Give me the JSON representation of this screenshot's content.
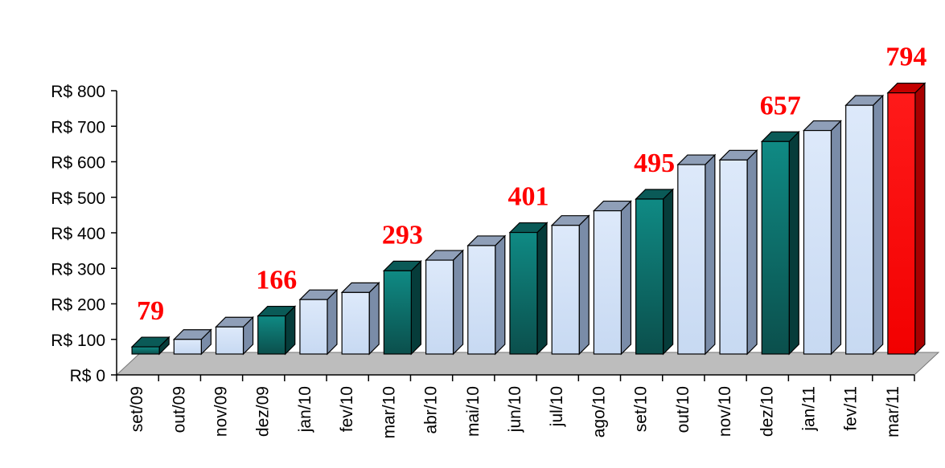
{
  "chart_data": {
    "type": "bar",
    "categories": [
      "set/09",
      "out/09",
      "nov/09",
      "dez/09",
      "jan/10",
      "fev/10",
      "mar/10",
      "abr/10",
      "mai/10",
      "jun/10",
      "jul/10",
      "ago/10",
      "set/10",
      "out/10",
      "nov/10",
      "dez/10",
      "jan/11",
      "fev/11",
      "mar/11"
    ],
    "values": [
      79,
      100,
      135,
      166,
      212,
      232,
      293,
      323,
      364,
      401,
      421,
      462,
      495,
      592,
      605,
      657,
      688,
      759,
      794
    ],
    "highlighted_categories": [
      "set/09",
      "dez/09",
      "mar/10",
      "jun/10",
      "set/10",
      "dez/10"
    ],
    "emphasized_category": "mar/11",
    "data_labels": [
      {
        "category": "set/09",
        "text": "79"
      },
      {
        "category": "dez/09",
        "text": "166"
      },
      {
        "category": "mar/10",
        "text": "293"
      },
      {
        "category": "jun/10",
        "text": "401"
      },
      {
        "category": "set/10",
        "text": "495"
      },
      {
        "category": "dez/10",
        "text": "657"
      },
      {
        "category": "mar/11",
        "text": "794"
      }
    ],
    "ytick_labels": [
      "R$ 0",
      "R$ 100",
      "R$ 200",
      "R$ 300",
      "R$ 400",
      "R$ 500",
      "R$ 600",
      "R$ 700",
      "R$ 800"
    ],
    "ylim": [
      0,
      800
    ],
    "style": "3d-column",
    "grid": false,
    "colors": {
      "regular": "#cfe0f7",
      "quarter": "#0e7f7a",
      "latest": "#ff0000",
      "floor": "#bdbdbd",
      "label": "#ff0000"
    }
  }
}
